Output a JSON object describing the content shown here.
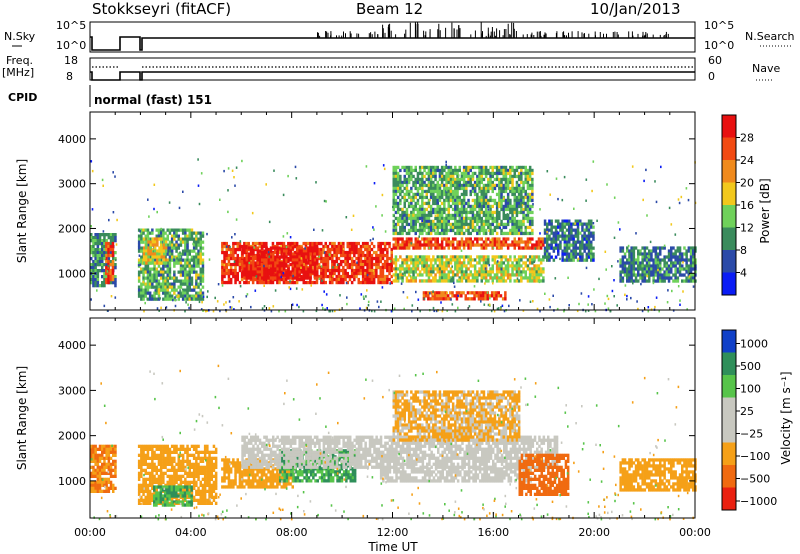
{
  "header": {
    "station": "Stokkseyri (fitACF)",
    "beam": "Beam 12",
    "date": "10/Jan/2013"
  },
  "strip_labels": {
    "nsky": "N.Sky",
    "nsky_top": "10^5",
    "nsky_bottom": "10^0",
    "nsearch": "N.Search",
    "nsearch_top": "10^5",
    "nsearch_bottom": "10^0",
    "freq": "Freq.",
    "freq_unit": "[MHz]",
    "freq_top": "18",
    "freq_bottom": "8",
    "nave": "Nave",
    "nave_top": "60",
    "nave_bottom": "0",
    "cpid": "CPID",
    "cpid_value": "normal (fast) 151"
  },
  "axes": {
    "ylabel": "Slant Range [km]",
    "xlabel": "Time UT",
    "yticks": [
      "1000",
      "2000",
      "3000",
      "4000"
    ],
    "xticks": [
      "00:00",
      "04:00",
      "08:00",
      "12:00",
      "16:00",
      "20:00",
      "00:00"
    ]
  },
  "colorbars": {
    "power": {
      "label": "Power [dB]",
      "ticks": [
        "4",
        "8",
        "12",
        "16",
        "20",
        "24",
        "28"
      ],
      "colors": [
        "#0a1cf5",
        "#2b4aa8",
        "#3a8b5c",
        "#6fd15a",
        "#f2c81c",
        "#f08a1c",
        "#f24a12",
        "#e81010"
      ]
    },
    "velocity": {
      "label": "Velocity [m s⁻¹]",
      "ticks": [
        "1000",
        "500",
        "100",
        "25",
        "−25",
        "−100",
        "−500",
        "−1000"
      ],
      "colors": [
        "#1040c8",
        "#2f8f5a",
        "#57c44a",
        "#c8c8c0",
        "#c8c8c0",
        "#f5a018",
        "#f06a10",
        "#ea2010"
      ]
    }
  },
  "chart_data": [
    {
      "type": "heatmap",
      "name": "power",
      "x_unit": "hours UT",
      "y_unit": "km",
      "xlim": [
        0,
        24
      ],
      "ylim": [
        180,
        4600
      ],
      "colorbar_range": [
        0,
        32
      ],
      "regions": [
        {
          "t0": 0.0,
          "t1": 1.0,
          "r0": 700,
          "r1": 1900,
          "value": 10
        },
        {
          "t0": 0.6,
          "t1": 0.9,
          "r0": 800,
          "r1": 1700,
          "value": 26
        },
        {
          "t0": 1.9,
          "t1": 4.5,
          "r0": 400,
          "r1": 2000,
          "value": 12
        },
        {
          "t0": 2.1,
          "t1": 3.0,
          "r0": 1200,
          "r1": 1800,
          "value": 18
        },
        {
          "t0": 5.2,
          "t1": 12.0,
          "r0": 800,
          "r1": 1700,
          "value": 28
        },
        {
          "t0": 6.0,
          "t1": 9.0,
          "r0": 900,
          "r1": 1600,
          "value": 30
        },
        {
          "t0": 12.0,
          "t1": 18.0,
          "r0": 800,
          "r1": 1400,
          "value": 16
        },
        {
          "t0": 12.0,
          "t1": 18.0,
          "r0": 1550,
          "r1": 1800,
          "value": 26
        },
        {
          "t0": 13.2,
          "t1": 16.5,
          "r0": 450,
          "r1": 600,
          "value": 26
        },
        {
          "t0": 12.0,
          "t1": 17.5,
          "r0": 1900,
          "r1": 3400,
          "value": 12
        },
        {
          "t0": 18.0,
          "t1": 20.0,
          "r0": 1300,
          "r1": 2200,
          "value": 8
        },
        {
          "t0": 21.0,
          "t1": 24.0,
          "r0": 800,
          "r1": 1600,
          "value": 9
        }
      ]
    },
    {
      "type": "heatmap",
      "name": "velocity",
      "x_unit": "hours UT",
      "y_unit": "km",
      "xlim": [
        0,
        24
      ],
      "ylim": [
        180,
        4600
      ],
      "colorbar_range": [
        -1000,
        1000
      ],
      "regions": [
        {
          "t0": 0.0,
          "t1": 1.0,
          "r0": 800,
          "r1": 1800,
          "value": -300
        },
        {
          "t0": 1.9,
          "t1": 5.0,
          "r0": 500,
          "r1": 1800,
          "value": -150
        },
        {
          "t0": 2.5,
          "t1": 4.0,
          "r0": 500,
          "r1": 900,
          "value": 300
        },
        {
          "t0": 5.2,
          "t1": 8.0,
          "r0": 900,
          "r1": 1500,
          "value": -150
        },
        {
          "t0": 7.5,
          "t1": 10.5,
          "r0": 1000,
          "r1": 1700,
          "value": 300
        },
        {
          "t0": 6.0,
          "t1": 18.5,
          "r0": 1300,
          "r1": 2000,
          "value": 0
        },
        {
          "t0": 11.5,
          "t1": 17.5,
          "r0": 1000,
          "r1": 1300,
          "value": 0
        },
        {
          "t0": 12.0,
          "t1": 17.0,
          "r0": 1900,
          "r1": 3000,
          "value": -80
        },
        {
          "t0": 17.0,
          "t1": 19.0,
          "r0": 700,
          "r1": 1600,
          "value": -400
        },
        {
          "t0": 21.0,
          "t1": 24.0,
          "r0": 800,
          "r1": 1500,
          "value": -200
        }
      ]
    }
  ]
}
